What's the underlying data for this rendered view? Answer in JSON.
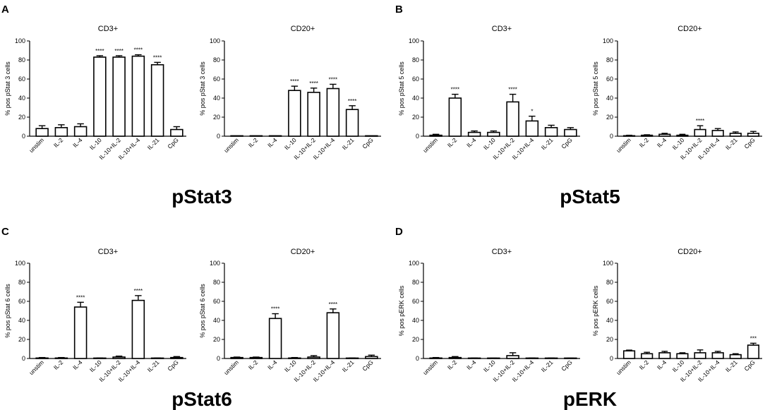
{
  "category_labels": [
    "unstim",
    "IL-2",
    "IL-4",
    "IL-10",
    "IL-10+IL-2",
    "IL-10+IL-4",
    "IL-21",
    "CpG"
  ],
  "y_ticks": [
    "0",
    "20",
    "40",
    "60",
    "80",
    "100"
  ],
  "panels": [
    {
      "label": "A",
      "title": "pStat3"
    },
    {
      "label": "B",
      "title": "pStat5"
    },
    {
      "label": "C",
      "title": "pStat6"
    },
    {
      "label": "D",
      "title": "pERK"
    }
  ],
  "chart_data": [
    {
      "type": "bar",
      "panel": "A",
      "title": "CD3+",
      "ylabel": "% pos pStat 3 cells",
      "ylim": [
        0,
        100
      ],
      "categories": [
        "unstim",
        "IL-2",
        "IL-4",
        "IL-10",
        "IL-10+IL-2",
        "IL-10+IL-4",
        "IL-21",
        "CpG"
      ],
      "values": [
        8,
        9,
        10,
        83,
        83,
        84,
        75,
        7
      ],
      "errors": [
        3,
        3,
        3,
        1.5,
        1.5,
        1.5,
        2.5,
        3
      ],
      "significance": [
        "",
        "",
        "",
        "****",
        "****",
        "****",
        "****",
        ""
      ]
    },
    {
      "type": "bar",
      "panel": "A",
      "title": "CD20+",
      "ylabel": "% pos pStat 3 cells",
      "ylim": [
        0,
        100
      ],
      "categories": [
        "unstim",
        "IL-2",
        "IL-4",
        "IL-10",
        "IL-10+IL-2",
        "IL-10+IL-4",
        "IL-21",
        "CpG"
      ],
      "values": [
        0,
        0,
        0,
        48,
        46,
        50,
        28,
        0
      ],
      "errors": [
        0,
        0,
        0,
        4.5,
        4.5,
        4.5,
        4,
        0
      ],
      "significance": [
        "",
        "",
        "",
        "****",
        "****",
        "****",
        "****",
        ""
      ]
    },
    {
      "type": "bar",
      "panel": "B",
      "title": "CD3+",
      "ylabel": "% pos pStat 5 cells",
      "ylim": [
        0,
        100
      ],
      "categories": [
        "unstim",
        "IL-2",
        "IL-4",
        "IL-10",
        "IL-10+IL-2",
        "IL-10+IL-4",
        "IL-21",
        "CpG"
      ],
      "values": [
        1,
        40,
        4,
        4,
        36,
        16,
        9,
        7
      ],
      "errors": [
        1,
        4,
        1.5,
        1.5,
        8,
        5,
        2.5,
        2
      ],
      "significance": [
        "",
        "****",
        "",
        "",
        "****",
        "*",
        "",
        ""
      ]
    },
    {
      "type": "bar",
      "panel": "B",
      "title": "CD20+",
      "ylabel": "% pos pStat 5 cells",
      "ylim": [
        0,
        100
      ],
      "categories": [
        "unstim",
        "IL-2",
        "IL-4",
        "IL-10",
        "IL-10+IL-2",
        "IL-10+IL-4",
        "IL-21",
        "CpG"
      ],
      "values": [
        0.5,
        1,
        2,
        1,
        7,
        6,
        3,
        3
      ],
      "errors": [
        0.5,
        0.5,
        1,
        1,
        4,
        2,
        1.5,
        2
      ],
      "significance": [
        "",
        "",
        "",
        "",
        "****",
        "",
        "",
        ""
      ]
    },
    {
      "type": "bar",
      "panel": "C",
      "title": "CD3+",
      "ylabel": "% pos pStat 6 cells",
      "ylim": [
        0,
        100
      ],
      "categories": [
        "unstim",
        "IL-2",
        "IL-4",
        "IL-10",
        "IL-10+IL-2",
        "IL-10+IL-4",
        "IL-21",
        "CpG"
      ],
      "values": [
        0.5,
        0.5,
        54,
        0.3,
        1.5,
        61,
        0.3,
        1
      ],
      "errors": [
        0.5,
        0.5,
        5,
        0.3,
        1,
        5,
        0.3,
        1
      ],
      "significance": [
        "",
        "",
        "****",
        "",
        "",
        "****",
        "",
        ""
      ]
    },
    {
      "type": "bar",
      "panel": "C",
      "title": "CD20+",
      "ylabel": "% pos pStat 6 cells",
      "ylim": [
        0,
        100
      ],
      "categories": [
        "unstim",
        "IL-2",
        "IL-4",
        "IL-10",
        "IL-10+IL-2",
        "IL-10+IL-4",
        "IL-21",
        "CpG"
      ],
      "values": [
        1,
        1,
        42,
        0.5,
        1.5,
        48,
        0.3,
        2
      ],
      "errors": [
        0.5,
        0.5,
        5,
        0.5,
        1.5,
        4,
        0.3,
        1.5
      ],
      "significance": [
        "",
        "",
        "****",
        "",
        "",
        "****",
        "",
        ""
      ]
    },
    {
      "type": "bar",
      "panel": "D",
      "title": "CD3+",
      "ylabel": "% pos pERK cells",
      "ylim": [
        0,
        100
      ],
      "categories": [
        "unstim",
        "IL-2",
        "IL-4",
        "IL-10",
        "IL-10+IL-2",
        "IL-10+IL-4",
        "IL-21",
        "CpG"
      ],
      "values": [
        0.5,
        1,
        0.3,
        0.2,
        3,
        0.3,
        0.3,
        0.2
      ],
      "errors": [
        0.5,
        1,
        0.3,
        0.2,
        3,
        0.3,
        0.3,
        0.2
      ],
      "significance": [
        "",
        "",
        "",
        "",
        "",
        "",
        "",
        ""
      ]
    },
    {
      "type": "bar",
      "panel": "D",
      "title": "CD20+",
      "ylabel": "% pos pERK cells",
      "ylim": [
        0,
        100
      ],
      "categories": [
        "unstim",
        "IL-2",
        "IL-4",
        "IL-10",
        "IL-10+IL-2",
        "IL-10+IL-4",
        "IL-21",
        "CpG"
      ],
      "values": [
        8,
        5,
        6,
        5,
        6,
        6,
        4,
        14
      ],
      "errors": [
        0.8,
        1.5,
        1.5,
        1,
        3,
        1.5,
        1,
        2
      ],
      "significance": [
        "",
        "",
        "",
        "",
        "",
        "",
        "",
        "***"
      ]
    }
  ]
}
